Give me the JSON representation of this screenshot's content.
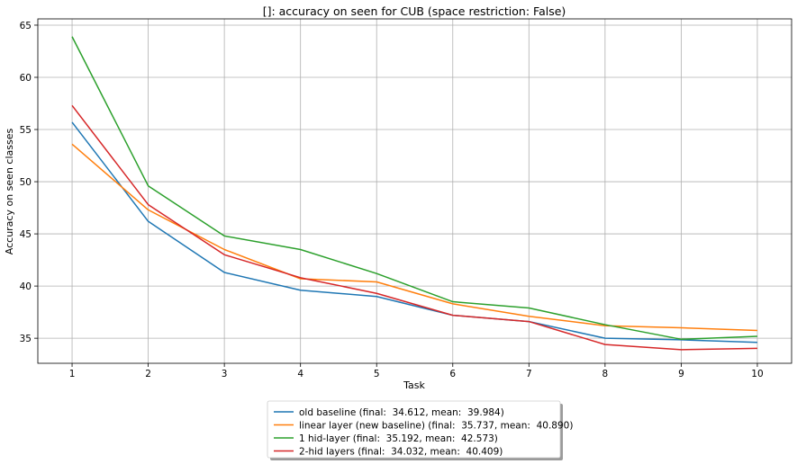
{
  "chart_data": {
    "type": "line",
    "title": "[]: accuracy on seen for CUB (space restriction: False)",
    "xlabel": "Task",
    "ylabel": "Accuracy on seen classes",
    "x": [
      1,
      2,
      3,
      4,
      5,
      6,
      7,
      8,
      9,
      10
    ],
    "xlim": [
      0.55,
      10.45
    ],
    "ylim": [
      32.6,
      65.6
    ],
    "yticks": [
      35,
      40,
      45,
      50,
      55,
      60,
      65
    ],
    "grid": true,
    "legend_position": "bottom-center",
    "series": [
      {
        "name": "old baseline (final:  34.612, mean:  39.984)",
        "color": "#1f77b4",
        "values": [
          55.7,
          46.2,
          41.3,
          39.6,
          39.0,
          37.2,
          36.6,
          35.0,
          34.85,
          34.6
        ]
      },
      {
        "name": "linear layer (new baseline) (final:  35.737, mean:  40.890)",
        "color": "#ff7f0e",
        "values": [
          53.6,
          47.3,
          43.5,
          40.7,
          40.4,
          38.3,
          37.1,
          36.2,
          36.0,
          35.74
        ]
      },
      {
        "name": "1 hid-layer (final:  35.192, mean:  42.573)",
        "color": "#2ca02c",
        "values": [
          63.9,
          49.6,
          44.8,
          43.5,
          41.2,
          38.5,
          37.9,
          36.3,
          34.9,
          35.19
        ]
      },
      {
        "name": "2-hid layers (final:  34.032, mean:  40.409)",
        "color": "#d62728",
        "values": [
          57.3,
          47.8,
          43.0,
          40.8,
          39.3,
          37.2,
          36.6,
          34.4,
          33.9,
          34.03
        ]
      }
    ]
  }
}
